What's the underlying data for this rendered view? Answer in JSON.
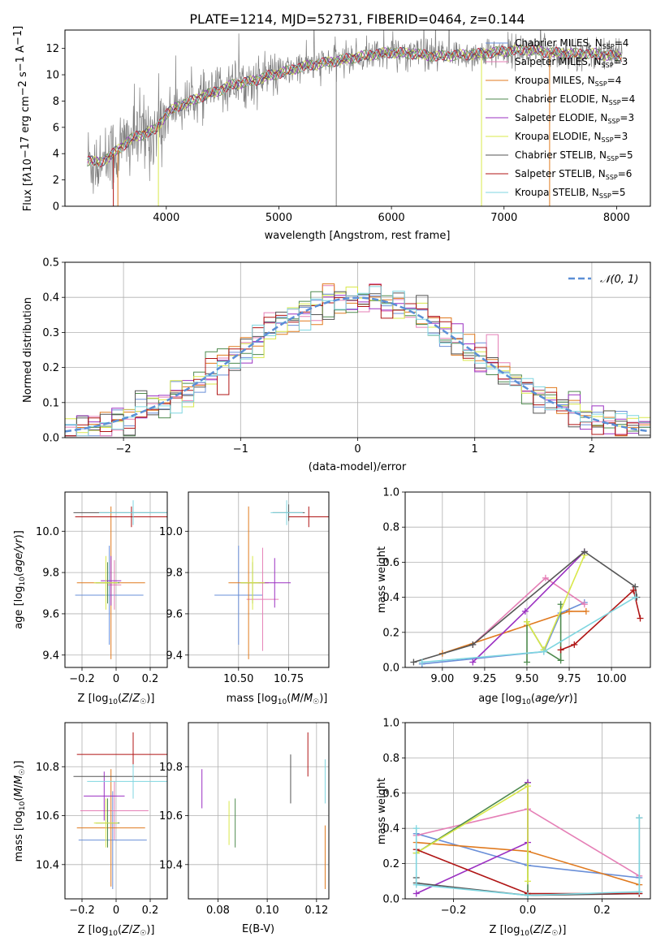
{
  "figure": {
    "title": "PLATE=1214, MJD=52731, FIBERID=0464, z=0.144"
  },
  "colors": {
    "Chabrier MILES": "#6a8fd8",
    "Salpeter MILES": "#e57fb6",
    "Kroupa MILES": "#e07a1f",
    "Chabrier ELODIE": "#4e8a4e",
    "Salpeter ELODIE": "#9b30c2",
    "Kroupa ELODIE": "#d9e84a",
    "Chabrier STELIB": "#555555",
    "Salpeter STELIB": "#b01515",
    "Kroupa STELIB": "#7fd6e0",
    "data": "#7f7f7f",
    "grid": "#b0b0b0",
    "gaussian": "#5b8fd6"
  },
  "chart_data": [
    {
      "id": "spectrum",
      "type": "line",
      "xlabel": "wavelength [Angstrom, rest frame]",
      "ylabel": "Flux [fλ10⁻¹⁷ erg cm⁻² s⁻¹ A⁻¹]",
      "xlim": [
        3100,
        8300
      ],
      "ylim": [
        0,
        13.4
      ],
      "xticks": [
        4000,
        5000,
        6000,
        7000,
        8000
      ],
      "yticks": [
        0,
        2,
        4,
        6,
        8,
        10,
        12
      ],
      "grid": false,
      "legend_position": "top-right",
      "continuum": {
        "x": [
          3300,
          3400,
          3500,
          3600,
          3700,
          3800,
          3900,
          4000,
          4100,
          4200,
          4300,
          4400,
          4500,
          4600,
          4700,
          4800,
          4900,
          5000,
          5200,
          5400,
          5600,
          5800,
          6000,
          6200,
          6400,
          6600,
          6800,
          7000,
          7200,
          7400,
          7600,
          7800,
          8000
        ],
        "y": [
          3.5,
          3.3,
          3.8,
          4.5,
          5.2,
          5.5,
          5.8,
          7.0,
          7.6,
          7.9,
          8.3,
          8.6,
          8.9,
          9.3,
          9.4,
          9.6,
          9.9,
          10.1,
          10.6,
          10.9,
          11.2,
          11.5,
          11.7,
          11.6,
          11.4,
          11.5,
          11.6,
          11.8,
          11.9,
          11.7,
          11.6,
          11.6,
          11.4
        ]
      },
      "series": [
        {
          "name": "Chabrier MILES, N_SSP=4",
          "label_main": "Chabrier MILES, N",
          "label_sub": "SSP",
          "label_tail": "=4"
        },
        {
          "name": "Salpeter MILES, N_SSP=3",
          "label_main": "Salpeter MILES, N",
          "label_sub": "SSP",
          "label_tail": "=3"
        },
        {
          "name": "Kroupa MILES, N_SSP=4",
          "label_main": "Kroupa MILES, N",
          "label_sub": "SSP",
          "label_tail": "=4"
        },
        {
          "name": "Chabrier ELODIE, N_SSP=4",
          "label_main": "Chabrier ELODIE, N",
          "label_sub": "SSP",
          "label_tail": "=4"
        },
        {
          "name": "Salpeter ELODIE, N_SSP=3",
          "label_main": "Salpeter ELODIE, N",
          "label_sub": "SSP",
          "label_tail": "=3"
        },
        {
          "name": "Kroupa ELODIE, N_SSP=3",
          "label_main": "Kroupa ELODIE, N",
          "label_sub": "SSP",
          "label_tail": "=3"
        },
        {
          "name": "Chabrier STELIB, N_SSP=5",
          "label_main": "Chabrier STELIB, N",
          "label_sub": "SSP",
          "label_tail": "=5"
        },
        {
          "name": "Salpeter STELIB, N_SSP=6",
          "label_main": "Salpeter STELIB, N",
          "label_sub": "SSP",
          "label_tail": "=6"
        },
        {
          "name": "Kroupa STELIB, N_SSP=5",
          "label_main": "Kroupa STELIB, N",
          "label_sub": "SSP",
          "label_tail": "=5"
        }
      ]
    },
    {
      "id": "residuals",
      "type": "line",
      "xlabel": "(data-model)/error",
      "ylabel": "Normed distribution",
      "xlim": [
        -2.5,
        2.5
      ],
      "ylim": [
        0,
        0.5
      ],
      "xticks": [
        -2,
        -1,
        0,
        1,
        2
      ],
      "yticks": [
        0.0,
        0.1,
        0.2,
        0.3,
        0.4,
        0.5
      ],
      "grid": true,
      "legend_position": "top-right",
      "legend_label": "𝒩(0, 1)",
      "bin_width": 0.1
    },
    {
      "id": "age-vs-Z",
      "type": "scatter",
      "xlabel": "Z [log10(Z/Z☉)]",
      "ylabel": "age [log10(age/yr)]",
      "xlim": [
        -0.3,
        0.3
      ],
      "ylim": [
        9.34,
        10.19
      ],
      "xticks": [
        -0.2,
        0.0,
        0.2
      ],
      "yticks": [
        9.4,
        9.6,
        9.8,
        10.0
      ],
      "grid": true,
      "points": [
        {
          "s": "Chabrier MILES",
          "x": -0.04,
          "y": 9.69,
          "xerr": 0.2,
          "yerr": 0.24
        },
        {
          "s": "Salpeter MILES",
          "x": -0.01,
          "y": 9.74,
          "xerr": 0.04,
          "yerr": 0.12
        },
        {
          "s": "Kroupa MILES",
          "x": -0.03,
          "y": 9.75,
          "xerr": 0.2,
          "yerr": 0.37
        },
        {
          "s": "Chabrier ELODIE",
          "x": -0.05,
          "y": 9.75,
          "xerr": 0.07,
          "yerr": 0.1
        },
        {
          "s": "Salpeter ELODIE",
          "x": -0.03,
          "y": 9.76,
          "xerr": 0.06,
          "yerr": 0.12
        },
        {
          "s": "Kroupa ELODIE",
          "x": -0.06,
          "y": 9.75,
          "xerr": 0.07,
          "yerr": 0.13
        },
        {
          "s": "Chabrier STELIB",
          "x": 0.1,
          "y": 10.09,
          "xerr": 0.35,
          "yerr": 0.04
        },
        {
          "s": "Salpeter STELIB",
          "x": 0.09,
          "y": 10.07,
          "xerr": 0.33,
          "yerr": 0.05
        },
        {
          "s": "Kroupa STELIB",
          "x": 0.1,
          "y": 10.09,
          "xerr": 0.2,
          "yerr": 0.06
        }
      ]
    },
    {
      "id": "age-vs-mass",
      "type": "scatter",
      "xlabel": "mass [log10(M/M☉)]",
      "ylabel": "",
      "xlim": [
        10.25,
        10.95
      ],
      "ylim": [
        9.34,
        10.19
      ],
      "xticks": [
        10.5,
        10.75
      ],
      "tick_labels": [
        "10.50",
        "10.75"
      ],
      "yticks": [
        9.4,
        9.6,
        9.8,
        10.0
      ],
      "grid": true,
      "points": [
        {
          "s": "Chabrier MILES",
          "x": 10.5,
          "y": 9.69,
          "xerr": 0.12,
          "yerr": 0.24
        },
        {
          "s": "Salpeter MILES",
          "x": 10.62,
          "y": 9.67,
          "xerr": 0.08,
          "yerr": 0.25
        },
        {
          "s": "Kroupa MILES",
          "x": 10.55,
          "y": 9.75,
          "xerr": 0.1,
          "yerr": 0.37
        },
        {
          "s": "Chabrier ELODIE",
          "x": 10.57,
          "y": 9.75,
          "xerr": 0.06,
          "yerr": 0.1
        },
        {
          "s": "Salpeter ELODIE",
          "x": 10.68,
          "y": 9.75,
          "xerr": 0.08,
          "yerr": 0.12
        },
        {
          "s": "Kroupa ELODIE",
          "x": 10.57,
          "y": 9.75,
          "xerr": 0.06,
          "yerr": 0.13
        },
        {
          "s": "Chabrier STELIB",
          "x": 10.75,
          "y": 10.09,
          "xerr": 0.08,
          "yerr": 0.04
        },
        {
          "s": "Salpeter STELIB",
          "x": 10.85,
          "y": 10.07,
          "xerr": 0.1,
          "yerr": 0.05
        },
        {
          "s": "Kroupa STELIB",
          "x": 10.74,
          "y": 10.09,
          "xerr": 0.08,
          "yerr": 0.06
        }
      ]
    },
    {
      "id": "weight-vs-age",
      "type": "line",
      "xlabel": "age [log10(age/yr)]",
      "ylabel": "mass weight",
      "xlim": [
        8.78,
        10.23
      ],
      "ylim": [
        0,
        1
      ],
      "xticks": [
        9.0,
        9.25,
        9.5,
        9.75,
        10.0
      ],
      "tick_labels": [
        "9.00",
        "9.25",
        "9.50",
        "9.75",
        "10.00"
      ],
      "yticks": [
        0.0,
        0.2,
        0.4,
        0.6,
        0.8,
        1.0
      ],
      "grid": true,
      "lines": [
        {
          "s": "Chabrier MILES",
          "x": [
            8.88,
            9.6,
            9.7,
            9.84
          ],
          "y": [
            0.02,
            0.09,
            0.31,
            0.37
          ]
        },
        {
          "s": "Salpeter MILES",
          "x": [
            9.18,
            9.61,
            9.84
          ],
          "y": [
            0.13,
            0.51,
            0.36
          ]
        },
        {
          "s": "Kroupa MILES",
          "x": [
            9.0,
            9.5,
            9.75,
            9.85
          ],
          "y": [
            0.08,
            0.24,
            0.32,
            0.32
          ]
        },
        {
          "s": "Chabrier ELODIE",
          "x": [
            9.5,
            9.5,
            9.6,
            9.7,
            9.7
          ],
          "y": [
            0.03,
            0.26,
            0.1,
            0.04,
            0.36
          ]
        },
        {
          "s": "Salpeter ELODIE",
          "x": [
            9.18,
            9.49,
            9.84
          ],
          "y": [
            0.03,
            0.32,
            0.66
          ]
        },
        {
          "s": "Kroupa ELODIE",
          "x": [
            9.5,
            9.6,
            9.84
          ],
          "y": [
            0.26,
            0.1,
            0.64
          ]
        },
        {
          "s": "Chabrier STELIB",
          "x": [
            8.83,
            9.18,
            9.84,
            10.14,
            10.15
          ],
          "y": [
            0.03,
            0.13,
            0.66,
            0.46,
            0.4
          ]
        },
        {
          "s": "Salpeter STELIB",
          "x": [
            9.7,
            9.78,
            10.13,
            10.17
          ],
          "y": [
            0.1,
            0.13,
            0.44,
            0.28
          ]
        },
        {
          "s": "Kroupa STELIB",
          "x": [
            8.88,
            9.6,
            10.14
          ],
          "y": [
            0.03,
            0.09,
            0.4
          ]
        }
      ]
    },
    {
      "id": "mass-vs-Z",
      "type": "scatter",
      "xlabel": "Z [log10(Z/Z☉)]",
      "ylabel": "mass [log10(M/M☉)]",
      "xlim": [
        -0.3,
        0.3
      ],
      "ylim": [
        10.26,
        10.98
      ],
      "xticks": [
        -0.2,
        0.0,
        0.2
      ],
      "yticks": [
        10.4,
        10.6,
        10.8
      ],
      "grid": true,
      "points": [
        {
          "s": "Chabrier MILES",
          "x": -0.02,
          "y": 10.5,
          "xerr": 0.2,
          "yerr": 0.2
        },
        {
          "s": "Salpeter MILES",
          "x": -0.01,
          "y": 10.62,
          "xerr": 0.2,
          "yerr": 0.12
        },
        {
          "s": "Kroupa MILES",
          "x": -0.03,
          "y": 10.55,
          "xerr": 0.2,
          "yerr": 0.24
        },
        {
          "s": "Chabrier ELODIE",
          "x": -0.05,
          "y": 10.57,
          "xerr": 0.07,
          "yerr": 0.1
        },
        {
          "s": "Salpeter ELODIE",
          "x": -0.07,
          "y": 10.68,
          "xerr": 0.12,
          "yerr": 0.1
        },
        {
          "s": "Kroupa ELODIE",
          "x": -0.06,
          "y": 10.57,
          "xerr": 0.07,
          "yerr": 0.1
        },
        {
          "s": "Chabrier STELIB",
          "x": 0.1,
          "y": 10.76,
          "xerr": 0.35,
          "yerr": 0.09
        },
        {
          "s": "Salpeter STELIB",
          "x": 0.1,
          "y": 10.85,
          "xerr": 0.33,
          "yerr": 0.09
        },
        {
          "s": "Kroupa STELIB",
          "x": 0.1,
          "y": 10.74,
          "xerr": 0.27,
          "yerr": 0.07
        }
      ]
    },
    {
      "id": "mass-vs-ebv",
      "type": "scatter",
      "xlabel": "E(B-V)",
      "ylabel": "",
      "xlim": [
        0.068,
        0.125
      ],
      "ylim": [
        10.26,
        10.98
      ],
      "xticks": [
        0.08,
        0.1,
        0.12
      ],
      "tick_labels": [
        "0.08",
        "0.10",
        "0.12"
      ],
      "yticks": [
        10.4,
        10.6,
        10.8
      ],
      "grid": true,
      "points": [
        {
          "s": "Salpeter ELODIE",
          "x": 0.0735,
          "y": 10.71,
          "yerr": 0.08
        },
        {
          "s": "Kroupa ELODIE",
          "x": 0.0845,
          "y": 10.57,
          "yerr": 0.09
        },
        {
          "s": "Chabrier ELODIE",
          "x": 0.087,
          "y": 10.57,
          "yerr": 0.1
        },
        {
          "s": "Chabrier STELIB",
          "x": 0.1095,
          "y": 10.75,
          "yerr": 0.1
        },
        {
          "s": "Salpeter STELIB",
          "x": 0.1165,
          "y": 10.85,
          "yerr": 0.09
        },
        {
          "s": "Kroupa STELIB",
          "x": 0.1235,
          "y": 10.74,
          "yerr": 0.09
        },
        {
          "s": "Kroupa MILES",
          "x": 0.1235,
          "y": 10.43,
          "yerr": 0.13
        }
      ]
    },
    {
      "id": "weight-vs-Z",
      "type": "line",
      "xlabel": "Z [log10(Z/Z☉)]",
      "ylabel": "mass weight",
      "xlim": [
        -0.33,
        0.33
      ],
      "ylim": [
        0,
        1
      ],
      "xticks": [
        -0.2,
        0.0,
        0.2
      ],
      "tick_labels": [
        "−0.2",
        "0.0",
        "0.2"
      ],
      "yticks": [
        0.0,
        0.2,
        0.4,
        0.6,
        0.8,
        1.0
      ],
      "grid": true,
      "lines": [
        {
          "s": "Chabrier MILES",
          "x": [
            -0.3,
            0.0,
            0.3
          ],
          "y": [
            0.37,
            0.19,
            0.12
          ]
        },
        {
          "s": "Salpeter MILES",
          "x": [
            -0.3,
            0.0,
            0.3
          ],
          "y": [
            0.36,
            0.51,
            0.13
          ]
        },
        {
          "s": "Kroupa MILES",
          "x": [
            -0.3,
            0.0,
            0.3
          ],
          "y": [
            0.32,
            0.27,
            0.08
          ]
        },
        {
          "s": "Chabrier ELODIE",
          "x": [
            -0.3,
            0.0,
            0.0
          ],
          "y": [
            0.26,
            0.66,
            0.03
          ]
        },
        {
          "s": "Salpeter ELODIE",
          "x": [
            -0.3,
            0.0,
            0.0
          ],
          "y": [
            0.03,
            0.32,
            0.66
          ]
        },
        {
          "s": "Kroupa ELODIE",
          "x": [
            -0.3,
            0.0,
            0.0
          ],
          "y": [
            0.26,
            0.64,
            0.1
          ]
        },
        {
          "s": "Chabrier STELIB",
          "x": [
            -0.3,
            -0.3,
            0.0,
            0.3,
            0.3
          ],
          "y": [
            0.12,
            0.09,
            0.02,
            0.03,
            0.46
          ]
        },
        {
          "s": "Salpeter STELIB",
          "x": [
            -0.3,
            0.0,
            0.3
          ],
          "y": [
            0.28,
            0.03,
            0.03
          ]
        },
        {
          "s": "Kroupa STELIB",
          "x": [
            -0.3,
            -0.3,
            0.0,
            0.3,
            0.3
          ],
          "y": [
            0.4,
            0.08,
            0.02,
            0.04,
            0.46
          ]
        }
      ]
    }
  ]
}
